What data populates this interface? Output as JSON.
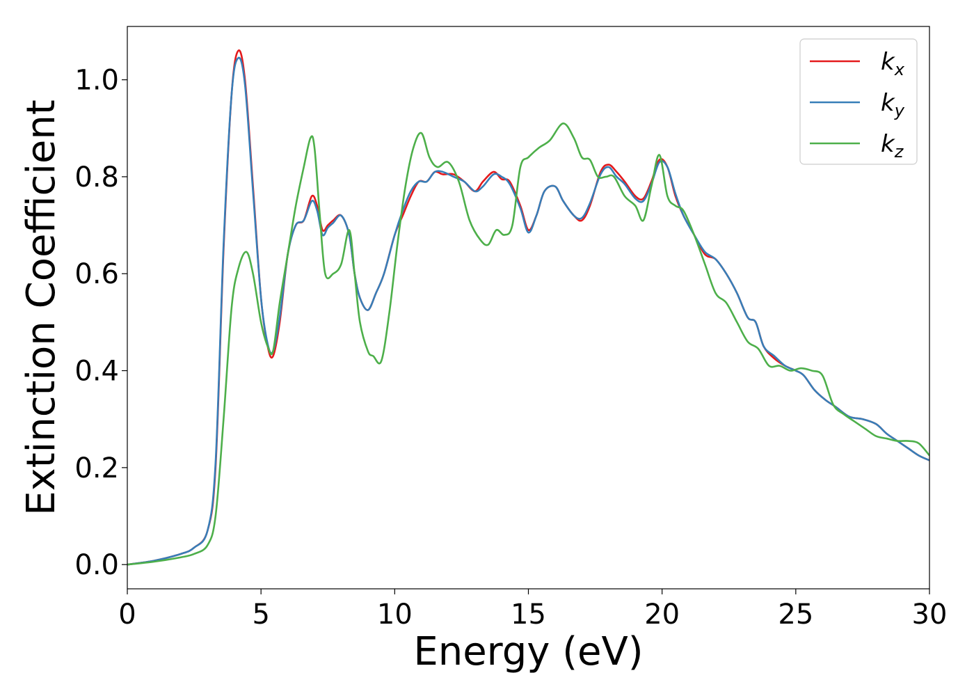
{
  "chart_data": {
    "type": "line",
    "title": "",
    "xlabel": "Energy (eV)",
    "ylabel": "Extinction Coefficient",
    "xlim": [
      0,
      30
    ],
    "ylim": [
      -0.05,
      1.11
    ],
    "xticks": [
      0,
      5,
      10,
      15,
      20,
      25,
      30
    ],
    "xtick_labels": [
      "0",
      "5",
      "10",
      "15",
      "20",
      "25",
      "30"
    ],
    "yticks": [
      0.0,
      0.2,
      0.4,
      0.6,
      0.8,
      1.0
    ],
    "ytick_labels": [
      "0.0",
      "0.2",
      "0.4",
      "0.6",
      "0.8",
      "1.0"
    ],
    "grid": false,
    "legend_position": "top-right",
    "series": [
      {
        "name": "k",
        "subscript": "x",
        "color": "#e41a1c",
        "x": [
          0,
          1,
          2,
          2.5,
          3,
          3.3,
          3.6,
          3.9,
          4.15,
          4.4,
          4.7,
          5.0,
          5.25,
          5.45,
          5.7,
          6.0,
          6.3,
          6.6,
          6.9,
          7.1,
          7.3,
          7.5,
          7.7,
          8.0,
          8.3,
          8.5,
          8.7,
          9.0,
          9.3,
          9.6,
          10.0,
          10.3,
          10.6,
          10.9,
          11.2,
          11.5,
          11.8,
          12.2,
          12.6,
          13.0,
          13.3,
          13.7,
          14.0,
          14.3,
          14.7,
          15.0,
          15.3,
          15.6,
          16.0,
          16.3,
          16.7,
          17.0,
          17.3,
          17.7,
          18.0,
          18.3,
          18.6,
          19.0,
          19.3,
          19.6,
          19.9,
          20.2,
          20.5,
          20.8,
          21.2,
          21.6,
          22.0,
          22.4,
          22.8,
          23.2,
          23.5,
          23.8,
          24.2,
          24.6,
          25.0,
          25.3,
          25.7,
          26.1,
          26.5,
          27.0,
          27.5,
          28.0,
          28.4,
          28.8,
          29.2,
          29.6,
          30.0
        ],
        "y": [
          0.0,
          0.008,
          0.022,
          0.035,
          0.07,
          0.2,
          0.65,
          0.97,
          1.06,
          1.0,
          0.78,
          0.55,
          0.45,
          0.43,
          0.5,
          0.64,
          0.7,
          0.71,
          0.76,
          0.74,
          0.69,
          0.7,
          0.71,
          0.72,
          0.68,
          0.6,
          0.55,
          0.525,
          0.56,
          0.6,
          0.68,
          0.72,
          0.76,
          0.79,
          0.79,
          0.81,
          0.805,
          0.805,
          0.79,
          0.77,
          0.79,
          0.81,
          0.795,
          0.79,
          0.74,
          0.69,
          0.72,
          0.77,
          0.78,
          0.75,
          0.72,
          0.71,
          0.74,
          0.81,
          0.825,
          0.81,
          0.79,
          0.76,
          0.755,
          0.79,
          0.835,
          0.82,
          0.76,
          0.72,
          0.68,
          0.64,
          0.63,
          0.6,
          0.56,
          0.51,
          0.5,
          0.45,
          0.425,
          0.41,
          0.4,
          0.39,
          0.36,
          0.34,
          0.325,
          0.305,
          0.3,
          0.29,
          0.27,
          0.255,
          0.24,
          0.225,
          0.215
        ]
      },
      {
        "name": "k",
        "subscript": "y",
        "color": "#377eb8",
        "x": [
          0,
          1,
          2,
          2.5,
          3,
          3.3,
          3.6,
          3.9,
          4.15,
          4.4,
          4.7,
          5.0,
          5.25,
          5.45,
          5.7,
          6.0,
          6.3,
          6.6,
          6.9,
          7.1,
          7.3,
          7.5,
          7.7,
          8.0,
          8.3,
          8.5,
          8.7,
          9.0,
          9.3,
          9.6,
          10.0,
          10.3,
          10.6,
          10.9,
          11.2,
          11.5,
          11.8,
          12.2,
          12.6,
          13.0,
          13.3,
          13.7,
          14.0,
          14.3,
          14.7,
          15.0,
          15.3,
          15.6,
          16.0,
          16.3,
          16.7,
          17.0,
          17.3,
          17.7,
          18.0,
          18.3,
          18.6,
          19.0,
          19.3,
          19.6,
          19.9,
          20.2,
          20.5,
          20.8,
          21.2,
          21.6,
          22.0,
          22.4,
          22.8,
          23.2,
          23.5,
          23.8,
          24.2,
          24.6,
          25.0,
          25.3,
          25.7,
          26.1,
          26.5,
          27.0,
          27.5,
          28.0,
          28.4,
          28.8,
          29.2,
          29.6,
          30.0
        ],
        "y": [
          0.0,
          0.008,
          0.022,
          0.035,
          0.07,
          0.21,
          0.66,
          0.97,
          1.045,
          0.99,
          0.77,
          0.55,
          0.455,
          0.44,
          0.51,
          0.64,
          0.7,
          0.71,
          0.75,
          0.73,
          0.68,
          0.695,
          0.705,
          0.72,
          0.68,
          0.6,
          0.55,
          0.525,
          0.56,
          0.6,
          0.68,
          0.73,
          0.77,
          0.79,
          0.79,
          0.81,
          0.81,
          0.8,
          0.79,
          0.77,
          0.78,
          0.805,
          0.8,
          0.785,
          0.735,
          0.685,
          0.72,
          0.77,
          0.78,
          0.75,
          0.72,
          0.715,
          0.745,
          0.805,
          0.82,
          0.8,
          0.785,
          0.755,
          0.75,
          0.785,
          0.83,
          0.82,
          0.765,
          0.72,
          0.68,
          0.645,
          0.63,
          0.6,
          0.56,
          0.51,
          0.5,
          0.45,
          0.43,
          0.41,
          0.4,
          0.39,
          0.36,
          0.34,
          0.325,
          0.305,
          0.3,
          0.29,
          0.27,
          0.255,
          0.24,
          0.225,
          0.215
        ]
      },
      {
        "name": "k",
        "subscript": "z",
        "color": "#4daf4a",
        "x": [
          0,
          1,
          2,
          2.5,
          3,
          3.3,
          3.6,
          3.9,
          4.15,
          4.45,
          4.7,
          5.0,
          5.25,
          5.45,
          5.7,
          6.0,
          6.3,
          6.6,
          6.85,
          7.0,
          7.2,
          7.4,
          7.7,
          8.0,
          8.3,
          8.5,
          8.7,
          9.0,
          9.2,
          9.5,
          9.8,
          10.1,
          10.4,
          10.7,
          11.0,
          11.3,
          11.6,
          12.0,
          12.4,
          12.8,
          13.2,
          13.5,
          13.8,
          14.1,
          14.4,
          14.7,
          15.0,
          15.4,
          15.8,
          16.3,
          16.7,
          17.0,
          17.3,
          17.6,
          17.9,
          18.2,
          18.6,
          19.0,
          19.3,
          19.6,
          19.9,
          20.2,
          20.5,
          20.8,
          21.2,
          21.6,
          22.0,
          22.4,
          22.8,
          23.2,
          23.6,
          24.0,
          24.4,
          24.8,
          25.2,
          25.6,
          26.0,
          26.4,
          26.8,
          27.2,
          27.6,
          28.0,
          28.4,
          28.8,
          29.2,
          29.6,
          30.0
        ],
        "y": [
          0.0,
          0.006,
          0.015,
          0.022,
          0.04,
          0.1,
          0.3,
          0.53,
          0.61,
          0.645,
          0.6,
          0.5,
          0.45,
          0.44,
          0.54,
          0.64,
          0.74,
          0.82,
          0.88,
          0.86,
          0.72,
          0.6,
          0.6,
          0.62,
          0.69,
          0.6,
          0.5,
          0.44,
          0.43,
          0.42,
          0.52,
          0.66,
          0.78,
          0.86,
          0.89,
          0.84,
          0.82,
          0.83,
          0.79,
          0.71,
          0.67,
          0.66,
          0.69,
          0.68,
          0.7,
          0.82,
          0.84,
          0.86,
          0.875,
          0.91,
          0.88,
          0.84,
          0.835,
          0.8,
          0.8,
          0.8,
          0.76,
          0.74,
          0.71,
          0.78,
          0.845,
          0.76,
          0.74,
          0.73,
          0.68,
          0.62,
          0.56,
          0.54,
          0.5,
          0.46,
          0.445,
          0.41,
          0.41,
          0.4,
          0.405,
          0.4,
          0.39,
          0.33,
          0.31,
          0.295,
          0.28,
          0.265,
          0.26,
          0.255,
          0.255,
          0.25,
          0.225
        ]
      }
    ]
  }
}
